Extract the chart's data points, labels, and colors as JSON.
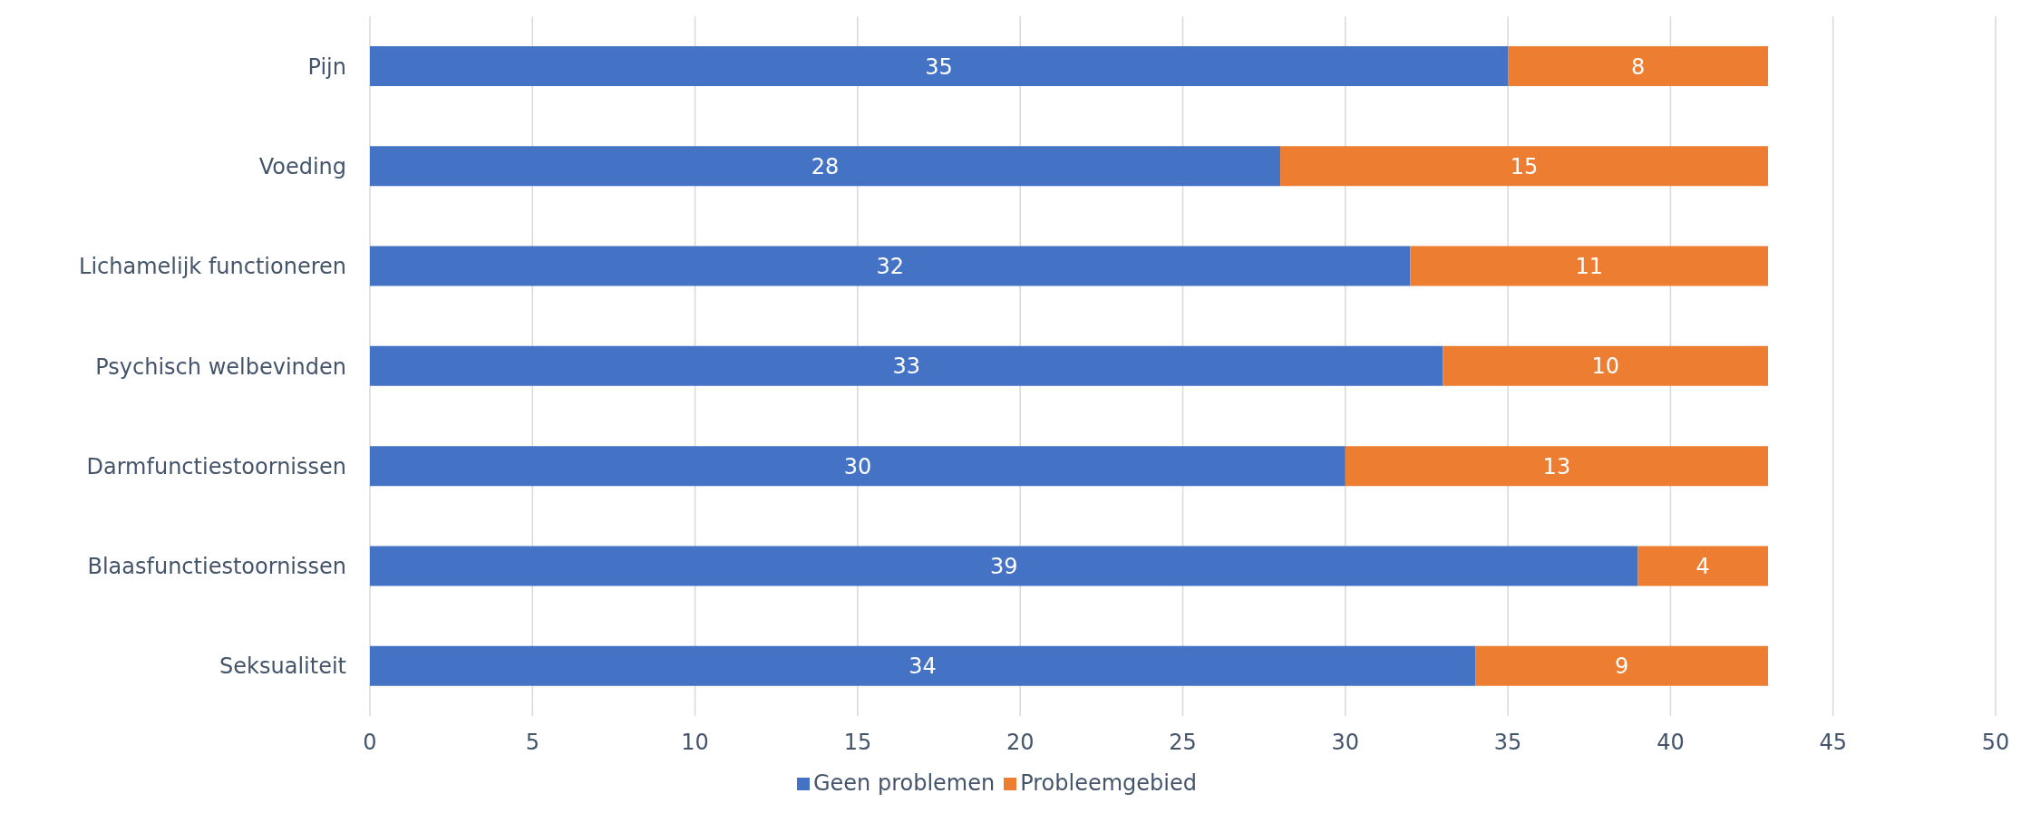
{
  "chart_data": {
    "type": "bar",
    "orientation": "horizontal",
    "stacked": true,
    "categories": [
      "Pijn",
      "Voeding",
      "Lichamelijk functioneren",
      "Psychisch welbevinden",
      "Darmfunctiestoornissen",
      "Blaasfunctiestoornissen",
      "Seksualiteit"
    ],
    "series": [
      {
        "name": "Geen problemen",
        "color": "#4472c4",
        "values": [
          35,
          28,
          32,
          33,
          30,
          39,
          34
        ]
      },
      {
        "name": "Probleemgebied",
        "color": "#ed7d31",
        "values": [
          8,
          15,
          11,
          10,
          13,
          4,
          9
        ]
      }
    ],
    "xlim": [
      0,
      50
    ],
    "xticks": [
      0,
      5,
      10,
      15,
      20,
      25,
      30,
      35,
      40,
      45,
      50
    ],
    "grid": "x",
    "legend": "bottom",
    "data_labels": true
  }
}
